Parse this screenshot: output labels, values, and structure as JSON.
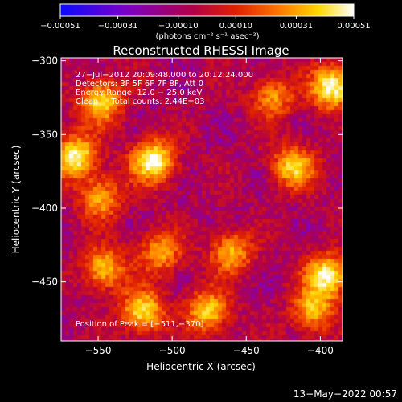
{
  "chart_data": {
    "type": "heatmap",
    "title": "Reconstructed RHESSI Image",
    "xlabel": "Heliocentric X (arcsec)",
    "ylabel": "Heliocentric Y (arcsec)",
    "xlim": [
      -575,
      -385
    ],
    "ylim": [
      -490,
      -298
    ],
    "xticks": [
      -550,
      -500,
      -450,
      -400
    ],
    "xtick_labels": [
      "−550",
      "−500",
      "−450",
      "−400"
    ],
    "yticks": [
      -300,
      -350,
      -400,
      -450
    ],
    "ytick_labels": [
      "−300",
      "−350",
      "−400",
      "−450"
    ],
    "colorbar": {
      "min": -0.00051,
      "max": 0.00051,
      "ticks": [
        -0.00051,
        -0.00031,
        -0.0001,
        0.0001,
        0.00031,
        0.00051
      ],
      "tick_labels": [
        "−0.00051",
        "−0.00031",
        "−0.00010",
        "0.00010",
        "0.00031",
        "0.00051"
      ],
      "unit_label": "(photons cm⁻² s⁻¹ asec⁻²)",
      "colormap": [
        "#0a0aff",
        "#7a00c8",
        "#b00048",
        "#e02000",
        "#ff7a00",
        "#ffd800",
        "#ffffff"
      ]
    },
    "info_lines": [
      "27−Jul−2012 20:09:48.000 to 20:12:24.000",
      "Detectors: 3F 5F 6F 7F 8F, Att 0",
      "Energy Range: 12.0 − 25.0 keV",
      "Clean     Total counts: 2.44E+03"
    ],
    "peak_label": "Position of Peak = [−511,−370]",
    "peak": {
      "x": -511,
      "y": -370
    },
    "hot_spots": [
      {
        "x": -513,
        "y": -368,
        "value": 0.00051
      },
      {
        "x": -565,
        "y": -365,
        "value": 0.00048
      },
      {
        "x": -392,
        "y": -318,
        "value": 0.0005
      },
      {
        "x": -395,
        "y": -446,
        "value": 0.00047
      },
      {
        "x": -520,
        "y": -470,
        "value": 0.0004
      },
      {
        "x": -548,
        "y": -328,
        "value": 0.00038
      },
      {
        "x": -476,
        "y": -470,
        "value": 0.00035
      },
      {
        "x": -418,
        "y": -372,
        "value": 0.00036
      },
      {
        "x": -546,
        "y": -441,
        "value": 0.00032
      },
      {
        "x": -460,
        "y": -430,
        "value": 0.00028
      },
      {
        "x": -405,
        "y": -470,
        "value": 0.0003
      },
      {
        "x": -548,
        "y": -393,
        "value": 0.00026
      },
      {
        "x": -508,
        "y": -430,
        "value": 0.00025
      },
      {
        "x": -432,
        "y": -325,
        "value": 0.00022
      }
    ]
  },
  "timestamp": "13−May−2022 00:57"
}
